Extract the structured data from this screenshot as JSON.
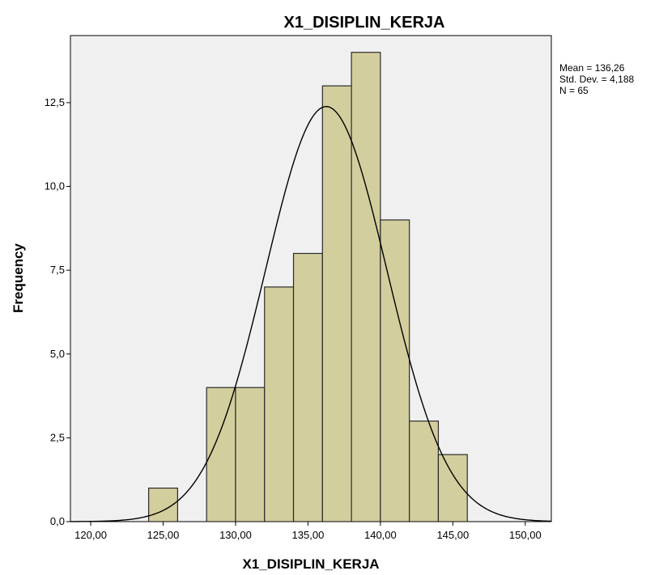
{
  "chart_data": {
    "type": "bar",
    "title": "X1_DISIPLIN_KERJA",
    "xlabel": "X1_DISIPLIN_KERJA",
    "ylabel": "Frequency",
    "xlim": [
      118.6,
      151.8
    ],
    "ylim": [
      0,
      14.5
    ],
    "grid": false,
    "bin_width": 2,
    "bins": [
      {
        "start": 124,
        "end": 126,
        "count": 1
      },
      {
        "start": 128,
        "end": 130,
        "count": 4
      },
      {
        "start": 130,
        "end": 132,
        "count": 4
      },
      {
        "start": 132,
        "end": 134,
        "count": 7
      },
      {
        "start": 134,
        "end": 136,
        "count": 8
      },
      {
        "start": 136,
        "end": 138,
        "count": 13
      },
      {
        "start": 138,
        "end": 140,
        "count": 14
      },
      {
        "start": 140,
        "end": 142,
        "count": 9
      },
      {
        "start": 142,
        "end": 144,
        "count": 3
      },
      {
        "start": 144,
        "end": 146,
        "count": 2
      }
    ],
    "x_ticks": [
      {
        "value": 120,
        "label": "120,00"
      },
      {
        "value": 125,
        "label": "125,00"
      },
      {
        "value": 130,
        "label": "130,00"
      },
      {
        "value": 135,
        "label": "135,00"
      },
      {
        "value": 140,
        "label": "140,00"
      },
      {
        "value": 145,
        "label": "145,00"
      },
      {
        "value": 150,
        "label": "150,00"
      }
    ],
    "y_ticks": [
      {
        "value": 0,
        "label": "0,0"
      },
      {
        "value": 2.5,
        "label": "2,5"
      },
      {
        "value": 5,
        "label": "5,0"
      },
      {
        "value": 7.5,
        "label": "7,5"
      },
      {
        "value": 10,
        "label": "10,0"
      },
      {
        "value": 12.5,
        "label": "12,5"
      }
    ],
    "normal_curve": {
      "mean": 136.26,
      "std_dev": 4.188,
      "n": 65
    },
    "stats_text": [
      "Mean = 136,26",
      "Std. Dev. = 4,188",
      "N = 65"
    ],
    "colors": {
      "bar_fill": "#d3ce9d",
      "bar_stroke": "#2b2b2b",
      "plot_bg": "#f0f0f0",
      "curve": "#000000"
    }
  }
}
